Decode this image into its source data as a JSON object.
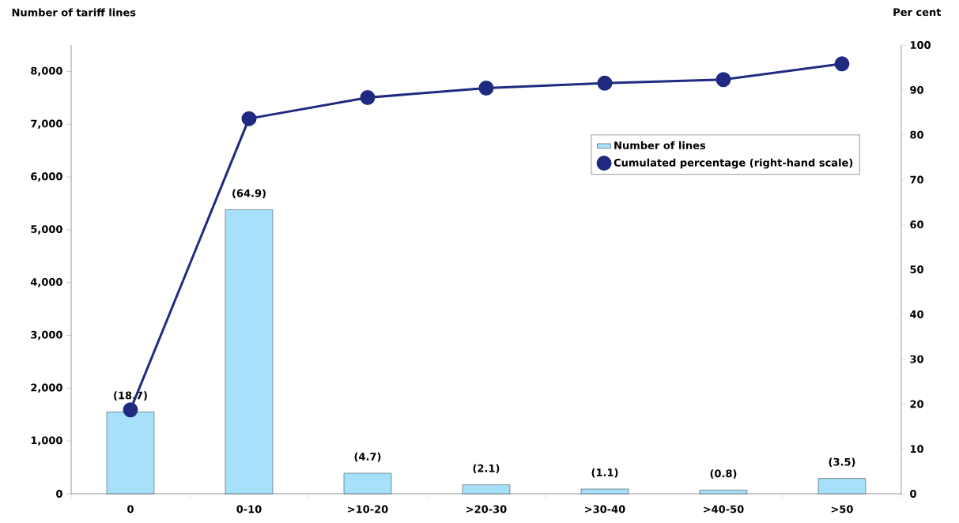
{
  "chart_data": {
    "type": "bar",
    "ylabel": "Number of tariff lines",
    "y2label": "Per cent",
    "categories": [
      "0",
      "0-10",
      ">10-20",
      ">20-30",
      ">30-40",
      ">40-50",
      ">50"
    ],
    "series": [
      {
        "name": "Number of lines",
        "color": "#a6e0fa",
        "values": [
          1550,
          5380,
          390,
          170,
          90,
          70,
          290
        ]
      },
      {
        "name": "Cumulated percentage (right-hand scale)",
        "type": "line",
        "axis": "y2",
        "color": "#1f2a80",
        "marker": "circle",
        "values": [
          18.7,
          83.6,
          88.3,
          90.4,
          91.5,
          92.3,
          95.8
        ]
      }
    ],
    "annotations": [
      {
        "text": "(18.7)",
        "x": "0",
        "y": 1550
      },
      {
        "text": "(64.9)",
        "x": "0-10",
        "y": 5380
      },
      {
        "text": "(4.7)",
        "x": ">10-20",
        "y": 390
      },
      {
        "text": "(2.1)",
        "x": ">20-30",
        "y": 170
      },
      {
        "text": "(1.1)",
        "x": ">30-40",
        "y": 90
      },
      {
        "text": "(0.8)",
        "x": ">40-50",
        "y": 70
      },
      {
        "text": "(3.5)",
        "x": ">50",
        "y": 290
      }
    ],
    "ylim": [
      0,
      8500
    ],
    "yticks": [
      {
        "value": 0,
        "label": "0"
      },
      {
        "value": 1000,
        "label": "1,000"
      },
      {
        "value": 2000,
        "label": "2,000"
      },
      {
        "value": 3000,
        "label": "3,000"
      },
      {
        "value": 4000,
        "label": "4,000"
      },
      {
        "value": 5000,
        "label": "5,000"
      },
      {
        "value": 6000,
        "label": "6,000"
      },
      {
        "value": 7000,
        "label": "7,000"
      },
      {
        "value": 8000,
        "label": "8,000"
      }
    ],
    "y2lim": [
      0,
      100
    ],
    "y2ticks": [
      0,
      10,
      20,
      30,
      40,
      50,
      60,
      70,
      80,
      90,
      100
    ],
    "legend": "top right",
    "grid": false
  }
}
